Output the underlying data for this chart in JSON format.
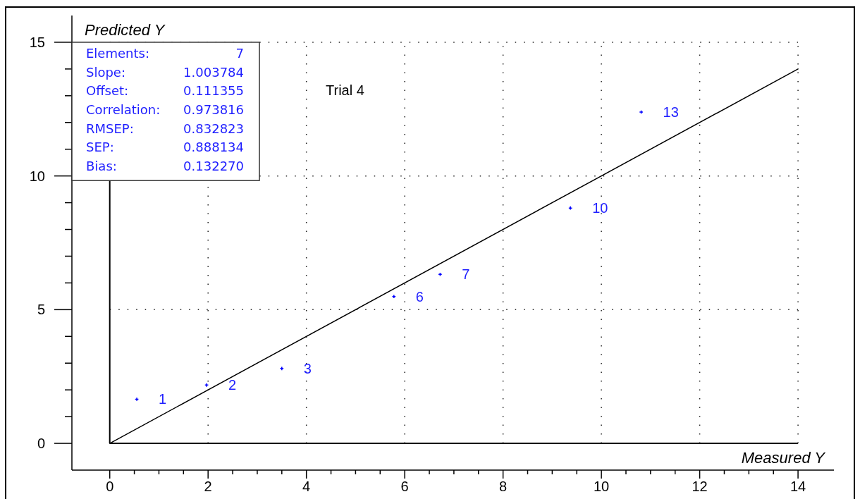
{
  "chart_data": {
    "type": "scatter",
    "title": "Trial 4",
    "xlabel": "Measured Y",
    "ylabel": "Predicted Y",
    "annotations": [
      "Elements:",
      "7",
      "Slope:",
      "1.003784",
      "Offset:",
      "0.111355",
      "Correlation:",
      "0.973816",
      "RMSEP:",
      "0.832823",
      "SEP:",
      "0.888134",
      "Bias:",
      "0.132270",
      {
        "text": "1",
        "x": 0.55,
        "y": 1.65
      },
      {
        "text": "2",
        "x": 1.97,
        "y": 2.18
      },
      {
        "text": "3",
        "x": 3.5,
        "y": 2.8
      },
      {
        "text": "6",
        "x": 5.78,
        "y": 5.49
      },
      {
        "text": "7",
        "x": 6.72,
        "y": 6.32
      },
      {
        "text": "10",
        "x": 9.37,
        "y": 8.8
      },
      {
        "text": "13",
        "x": 10.81,
        "y": 12.39
      }
    ],
    "series": [
      {
        "color": "#0000ff",
        "marker": "cross",
        "x": [
          0.55,
          1.97,
          3.5,
          5.78,
          6.72,
          9.37,
          10.81
        ],
        "values": [
          1.65,
          2.18,
          2.8,
          5.49,
          6.32,
          8.8,
          12.39
        ]
      },
      {
        "type": "line",
        "color": "#000000",
        "x": [
          0,
          14
        ],
        "values": [
          0,
          14
        ]
      }
    ],
    "xlim": [
      -0.77,
      14.73
    ],
    "ylim": [
      -1,
      16
    ],
    "xticks": [
      0,
      {
        "value": 0.5,
        "label": null
      },
      {
        "value": 1,
        "label": null
      },
      {
        "value": 1.5,
        "label": null
      },
      2,
      {
        "value": 2.5,
        "label": null
      },
      {
        "value": 3,
        "label": null
      },
      {
        "value": 3.5,
        "label": null
      },
      4,
      {
        "value": 4.5,
        "label": null
      },
      {
        "value": 5,
        "label": null
      },
      {
        "value": 5.5,
        "label": null
      },
      6,
      {
        "value": 6.5,
        "label": null
      },
      {
        "value": 7,
        "label": null
      },
      {
        "value": 7.5,
        "label": null
      },
      8,
      {
        "value": 8.5,
        "label": null
      },
      {
        "value": 9,
        "label": null
      },
      {
        "value": 9.5,
        "label": null
      },
      10,
      {
        "value": 10.5,
        "label": null
      },
      {
        "value": 11,
        "label": null
      },
      {
        "value": 11.5,
        "label": null
      },
      12,
      {
        "value": 12.5,
        "label": null
      },
      {
        "value": 13,
        "label": null
      },
      {
        "value": 13.5,
        "label": null
      },
      14
    ],
    "yticks": [
      0,
      {
        "value": 1,
        "label": null
      },
      {
        "value": 2,
        "label": null
      },
      {
        "value": 3,
        "label": null
      },
      {
        "value": 4,
        "label": null
      },
      5,
      {
        "value": 6,
        "label": null
      },
      {
        "value": 7,
        "label": null
      },
      {
        "value": 8,
        "label": null
      },
      {
        "value": 9,
        "label": null
      },
      10,
      {
        "value": 11,
        "label": null
      },
      {
        "value": 12,
        "label": null
      },
      {
        "value": 13,
        "label": null
      },
      {
        "value": 14,
        "label": null
      },
      15
    ],
    "grid": true
  }
}
